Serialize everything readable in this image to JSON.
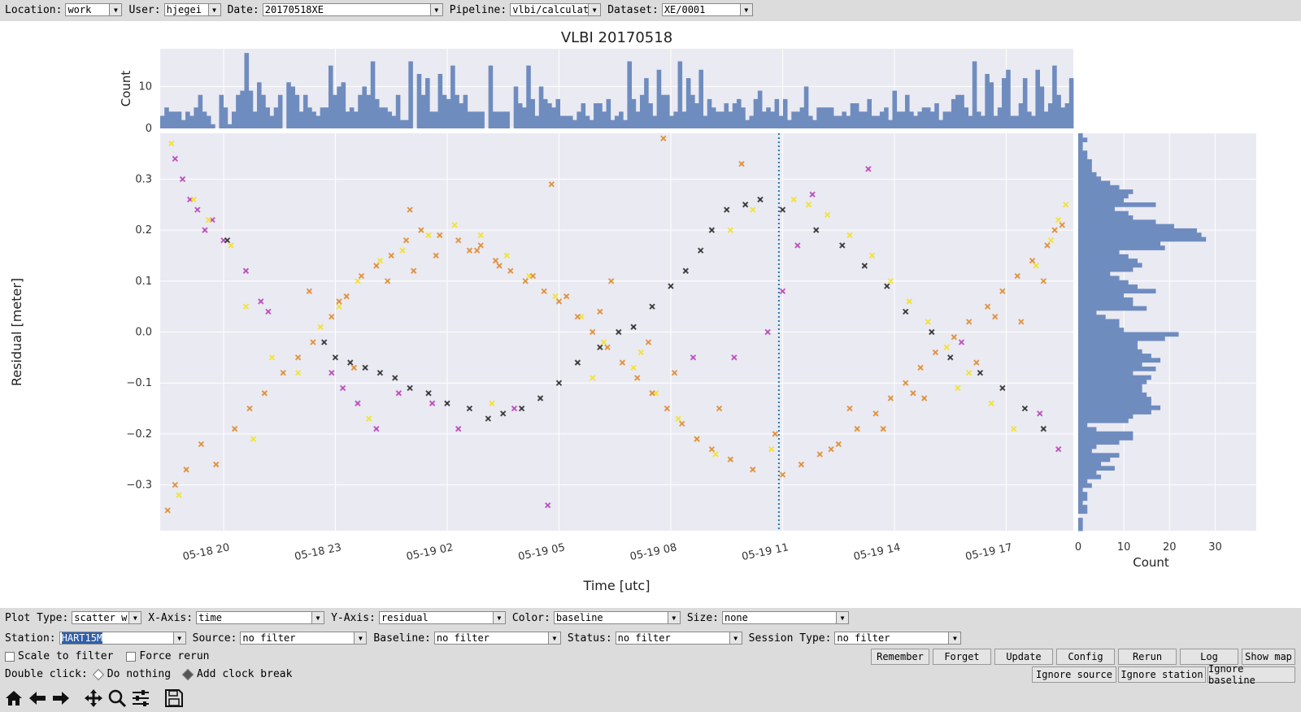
{
  "top_filters": [
    {
      "label": "Location:",
      "value": "work"
    },
    {
      "label": "User:",
      "value": "hjegei"
    },
    {
      "label": "Date:",
      "value": "20170518XE"
    },
    {
      "label": "Pipeline:",
      "value": "vlbi/calculate"
    },
    {
      "label": "Dataset:",
      "value": "XE/0001"
    }
  ],
  "chart_data": {
    "type": "scatter",
    "title": "VLBI 20170518",
    "xlabel": "Time [utc]",
    "ylabel": "Residual [meter]",
    "x_ticks": [
      "05-18 20",
      "05-18 23",
      "05-19 02",
      "05-19 05",
      "05-19 08",
      "05-19 11",
      "05-19 14",
      "05-19 17"
    ],
    "x_range_hours": [
      18.3,
      42.8
    ],
    "y_ticks": [
      "0.3",
      "0.2",
      "0.1",
      "0.0",
      "−0.1",
      "−0.2",
      "−0.3"
    ],
    "ylim": [
      -0.39,
      0.39
    ],
    "clock_break_hour": 34.9,
    "grid": true,
    "series": [
      {
        "name": "magenta",
        "color": "#b844b8",
        "x": [
          18.7,
          18.9,
          19.1,
          19.3,
          19.5,
          19.7,
          20.0,
          20.6,
          21.0,
          21.2,
          22.9,
          23.2,
          23.6,
          24.1,
          24.7,
          25.6,
          26.3,
          27.8,
          28.7,
          32.6,
          33.7,
          34.6,
          35.0,
          35.4,
          35.8,
          37.3,
          39.8,
          41.9,
          42.4
        ],
        "y": [
          0.34,
          0.3,
          0.26,
          0.24,
          0.2,
          0.22,
          0.18,
          0.12,
          0.06,
          0.04,
          -0.08,
          -0.11,
          -0.14,
          -0.19,
          -0.12,
          -0.14,
          -0.19,
          -0.15,
          -0.34,
          -0.05,
          -0.05,
          0.0,
          0.08,
          0.17,
          0.27,
          0.32,
          -0.02,
          -0.16,
          -0.23
        ]
      },
      {
        "name": "black",
        "color": "#2b2b2b",
        "x": [
          20.1,
          22.7,
          23.0,
          23.4,
          23.8,
          24.2,
          24.6,
          25.0,
          25.5,
          26.0,
          26.6,
          27.1,
          27.5,
          28.0,
          28.5,
          29.0,
          29.5,
          30.1,
          30.6,
          31.0,
          31.5,
          32.0,
          32.4,
          32.8,
          33.1,
          33.5,
          34.0,
          34.4,
          35.0,
          35.9,
          36.6,
          37.2,
          37.8,
          38.3,
          39.0,
          39.5,
          40.3,
          40.9,
          41.5,
          42.0
        ],
        "y": [
          0.18,
          -0.02,
          -0.05,
          -0.06,
          -0.07,
          -0.08,
          -0.09,
          -0.11,
          -0.12,
          -0.14,
          -0.15,
          -0.17,
          -0.16,
          -0.15,
          -0.13,
          -0.1,
          -0.06,
          -0.03,
          0.0,
          0.01,
          0.05,
          0.09,
          0.12,
          0.16,
          0.2,
          0.24,
          0.25,
          0.26,
          0.24,
          0.2,
          0.17,
          0.13,
          0.09,
          0.04,
          0.0,
          -0.05,
          -0.08,
          -0.11,
          -0.15,
          -0.19
        ]
      },
      {
        "name": "yellow",
        "color": "#f3e22a",
        "x": [
          18.6,
          18.8,
          19.2,
          19.6,
          20.2,
          20.6,
          21.3,
          22.0,
          22.6,
          23.1,
          23.6,
          24.2,
          24.8,
          25.5,
          26.2,
          26.9,
          27.6,
          28.2,
          28.9,
          29.6,
          30.2,
          31.0,
          31.6,
          32.2,
          32.7,
          33.2,
          33.6,
          34.2,
          35.3,
          35.7,
          36.2,
          36.8,
          37.4,
          37.9,
          38.4,
          38.9,
          39.4,
          40.0,
          40.6,
          41.2,
          41.8,
          42.4,
          42.6,
          20.8,
          23.9,
          27.2,
          29.9,
          31.2,
          34.7,
          39.7,
          42.2
        ],
        "y": [
          0.37,
          -0.32,
          0.26,
          0.22,
          0.17,
          0.05,
          -0.05,
          -0.08,
          0.01,
          0.05,
          0.1,
          0.14,
          0.16,
          0.19,
          0.21,
          0.19,
          0.15,
          0.11,
          0.07,
          0.03,
          -0.02,
          -0.07,
          -0.12,
          -0.17,
          -0.21,
          -0.24,
          0.2,
          0.24,
          0.26,
          0.25,
          0.23,
          0.19,
          0.15,
          0.1,
          0.06,
          0.02,
          -0.03,
          -0.08,
          -0.14,
          -0.19,
          0.13,
          0.22,
          0.25,
          -0.21,
          -0.17,
          -0.14,
          -0.09,
          -0.04,
          -0.23,
          -0.11,
          0.18
        ]
      },
      {
        "name": "orange",
        "color": "#e08a2e",
        "x": [
          18.5,
          18.7,
          19.0,
          19.4,
          19.8,
          20.3,
          20.7,
          21.1,
          21.6,
          22.0,
          22.4,
          22.9,
          23.3,
          23.7,
          24.1,
          24.5,
          24.9,
          25.3,
          25.8,
          26.3,
          26.8,
          27.3,
          27.7,
          28.1,
          28.6,
          29.0,
          29.5,
          29.9,
          30.3,
          30.7,
          31.1,
          31.5,
          31.9,
          32.3,
          32.7,
          33.1,
          33.6,
          34.2,
          35.0,
          35.5,
          36.0,
          36.5,
          37.0,
          37.5,
          37.9,
          38.3,
          38.7,
          39.1,
          39.6,
          40.0,
          40.5,
          40.9,
          41.3,
          41.7,
          42.1,
          42.5,
          22.3,
          23.1,
          24.4,
          25.1,
          25.7,
          26.6,
          27.4,
          28.3,
          29.2,
          30.1,
          31.4,
          32.1,
          33.3,
          34.8,
          36.3,
          37.7,
          38.8,
          40.2,
          41.4,
          42.0,
          23.5,
          25.0,
          26.9,
          28.8,
          30.4,
          31.8,
          33.9,
          36.8,
          38.5,
          40.7,
          42.3
        ],
        "y": [
          -0.35,
          -0.3,
          -0.27,
          -0.22,
          -0.26,
          -0.19,
          -0.15,
          -0.12,
          -0.08,
          -0.05,
          -0.02,
          0.03,
          0.07,
          0.11,
          0.13,
          0.15,
          0.18,
          0.2,
          0.19,
          0.18,
          0.16,
          0.14,
          0.12,
          0.1,
          0.08,
          0.06,
          0.03,
          0.0,
          -0.03,
          -0.06,
          -0.09,
          -0.12,
          -0.15,
          -0.18,
          -0.21,
          -0.23,
          -0.25,
          -0.27,
          -0.28,
          -0.26,
          -0.24,
          -0.22,
          -0.19,
          -0.16,
          -0.13,
          -0.1,
          -0.07,
          -0.04,
          -0.01,
          0.02,
          0.05,
          0.08,
          0.11,
          0.14,
          0.17,
          0.21,
          0.08,
          0.06,
          0.1,
          0.12,
          0.15,
          0.16,
          0.13,
          0.11,
          0.07,
          0.04,
          -0.02,
          -0.08,
          -0.15,
          -0.2,
          -0.23,
          -0.19,
          -0.13,
          -0.06,
          0.02,
          0.1,
          -0.07,
          0.24,
          0.17,
          0.29,
          0.1,
          0.38,
          0.33,
          -0.15,
          -0.12,
          0.03,
          0.2
        ]
      }
    ],
    "hist_x": {
      "ylabel": "Count",
      "yticks": [
        "0",
        "10"
      ],
      "counts": [
        3,
        5,
        4,
        4,
        4,
        2,
        4,
        3,
        5,
        8,
        4,
        3,
        1,
        0,
        8,
        5,
        1,
        4,
        8,
        9,
        18,
        9,
        4,
        11,
        8,
        5,
        3,
        5,
        8,
        0,
        11,
        10,
        8,
        4,
        8,
        5,
        4,
        3,
        5,
        5,
        15,
        8,
        10,
        11,
        4,
        5,
        4,
        8,
        10,
        8,
        16,
        7,
        5,
        5,
        4,
        3,
        8,
        2,
        2,
        16,
        0,
        13,
        8,
        12,
        4,
        4,
        13,
        8,
        7,
        15,
        8,
        6,
        8,
        4,
        4,
        4,
        4,
        0,
        15,
        4,
        4,
        4,
        4,
        0,
        10,
        6,
        5,
        15,
        7,
        3,
        10,
        7,
        6,
        5,
        7,
        3,
        3,
        3,
        2,
        4,
        6,
        3,
        2,
        6,
        6,
        4,
        7,
        2,
        3,
        4,
        2,
        16,
        7,
        4,
        8,
        12,
        6,
        3,
        14,
        8,
        8,
        3,
        4,
        16,
        4,
        12,
        8,
        6,
        14,
        3,
        7,
        5,
        4,
        4,
        6,
        4,
        6,
        7,
        5,
        2,
        3,
        7,
        9,
        4,
        5,
        4,
        7,
        3,
        7,
        2,
        4,
        4,
        5,
        10,
        3,
        2,
        5,
        5,
        5,
        5,
        3,
        3,
        4,
        3,
        6,
        6,
        4,
        4,
        7,
        3,
        3,
        4,
        5,
        2,
        9,
        4,
        4,
        8,
        4,
        3,
        4,
        5,
        5,
        4,
        6,
        2,
        4,
        4,
        7,
        8,
        8,
        5,
        3,
        16,
        4,
        3,
        13,
        11,
        3,
        5,
        12,
        14,
        3,
        3,
        6,
        12,
        4,
        3,
        14,
        10,
        4,
        6,
        15,
        8,
        5,
        6,
        12
      ]
    },
    "hist_y": {
      "xlabel": "Count",
      "xticks": [
        "0",
        "10",
        "20",
        "30"
      ],
      "counts": [
        1,
        1,
        1,
        0,
        2,
        2,
        1,
        2,
        2,
        1,
        3,
        2,
        5,
        4,
        8,
        5,
        7,
        9,
        3,
        4,
        9,
        12,
        12,
        4,
        2,
        11,
        12,
        16,
        18,
        16,
        16,
        15,
        14,
        14,
        15,
        16,
        12,
        17,
        14,
        18,
        16,
        14,
        13,
        13,
        19,
        22,
        10,
        9,
        9,
        6,
        4,
        15,
        12,
        12,
        10,
        17,
        13,
        11,
        9,
        7,
        12,
        14,
        13,
        11,
        9,
        19,
        18,
        28,
        27,
        26,
        21,
        17,
        12,
        11,
        8,
        17,
        10,
        11,
        12,
        9,
        7,
        5,
        4,
        3,
        3,
        3,
        2,
        2,
        1,
        1,
        2,
        1
      ]
    }
  },
  "controls": {
    "plot_type": {
      "label": "Plot Type:",
      "value": "scatter w"
    },
    "x_axis": {
      "label": "X-Axis:",
      "value": "time"
    },
    "y_axis": {
      "label": "Y-Axis:",
      "value": "residual"
    },
    "color": {
      "label": "Color:",
      "value": "baseline"
    },
    "size": {
      "label": "Size:",
      "value": "none"
    },
    "station": {
      "label": "Station:",
      "value": "HART15M"
    },
    "source": {
      "label": "Source:",
      "value": "no filter"
    },
    "baseline": {
      "label": "Baseline:",
      "value": "no filter"
    },
    "status": {
      "label": "Status:",
      "value": "no filter"
    },
    "session_type": {
      "label": "Session Type:",
      "value": "no filter"
    },
    "scale_to_filter": "Scale to filter",
    "force_rerun": "Force rerun",
    "double_click_label": "Double click:",
    "do_nothing": "Do nothing",
    "add_clock_break": "Add clock break"
  },
  "buttons": {
    "remember": "Remember",
    "forget": "Forget",
    "update": "Update",
    "config": "Config",
    "rerun": "Rerun",
    "log": "Log",
    "show_map": "Show map",
    "ignore_source": "Ignore source",
    "ignore_station": "Ignore station",
    "ignore_baseline": "Ignore baseline"
  },
  "toolbar_icons": [
    "home-icon",
    "back-arrow-icon",
    "forward-arrow-icon",
    "pan-icon",
    "zoom-icon",
    "configure-subplots-icon",
    "save-icon"
  ],
  "colors": {
    "hist": "#6f8cbf",
    "grid": "#ffffff",
    "axes_bg": "#eaeaf2",
    "clock_break": "#1f77b4"
  }
}
